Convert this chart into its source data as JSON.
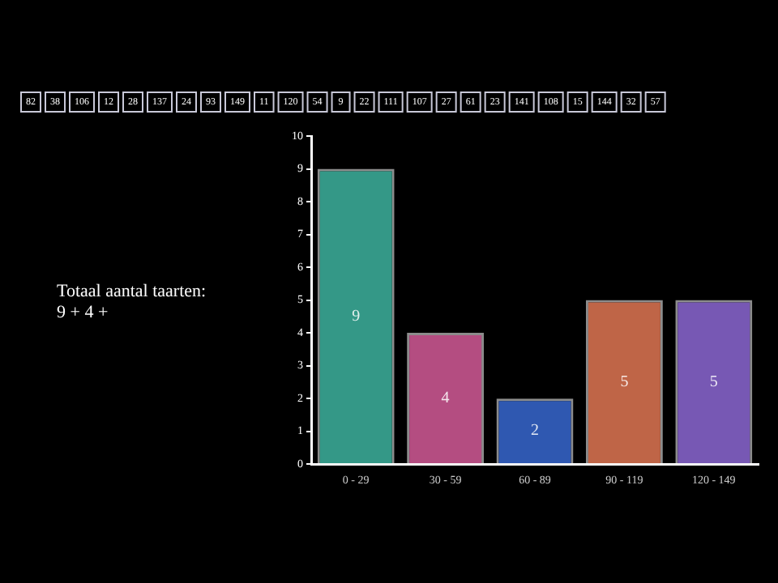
{
  "chart_data": {
    "type": "bar",
    "categories": [
      "0 - 29",
      "30 - 59",
      "60 - 89",
      "90 - 119",
      "120 - 149"
    ],
    "values": [
      9,
      4,
      2,
      5,
      5
    ],
    "colors": [
      "#3aa896",
      "#c8558f",
      "#3462c4",
      "#d4704f",
      "#8462c8"
    ],
    "ylim": [
      0,
      10
    ],
    "yticks": [
      0,
      1,
      2,
      3,
      4,
      5,
      6,
      7,
      8,
      9,
      10
    ],
    "grid": false,
    "legend": false,
    "data_labels": true,
    "annotations": [
      "82",
      "38",
      "106",
      "12",
      "28",
      "137",
      "24",
      "93",
      "149",
      "11",
      "120",
      "54",
      "9",
      "22",
      "111",
      "107",
      "27",
      "61",
      "23",
      "141",
      "108",
      "15",
      "144",
      "32",
      "57",
      "Totaal aantal taarten:",
      "9 + 4 +"
    ]
  }
}
